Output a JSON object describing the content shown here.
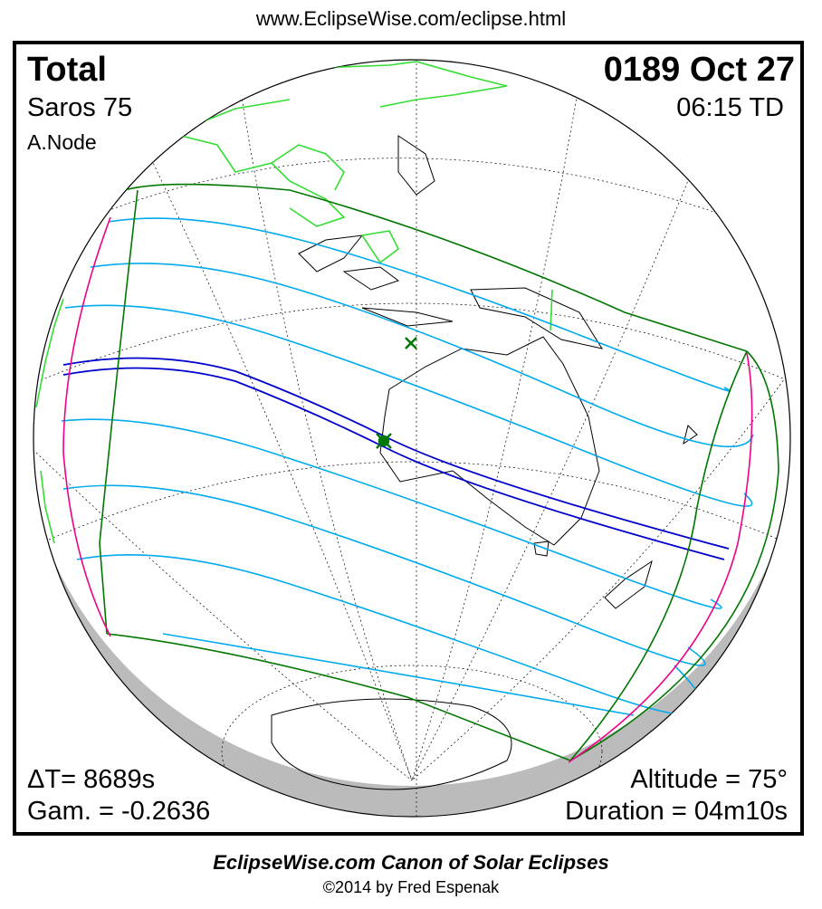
{
  "header": {
    "url": "www.EclipseWise.com/eclipse.html"
  },
  "eclipse": {
    "type": "Total",
    "date": "0189 Oct 27",
    "saros": "Saros  75",
    "time": "06:15 TD",
    "node": "A.Node",
    "delta_t": "ΔT=   8689s",
    "gamma": "Gam. = -0.2636",
    "altitude": "Altitude = 75°",
    "duration": "Duration = 04m10s"
  },
  "footer": {
    "title": "EclipseWise.com Canon of Solar Eclipses",
    "copyright": "©2014 by Fred Espenak"
  },
  "colors": {
    "central_path": "#0000cc",
    "penumbral_lines": "#00aaee",
    "penumbra_limits": "#007700",
    "rise_set_curves": "#ee0088",
    "land_daylight": "#33dd33",
    "night_shadow": "#bbbbbb",
    "greatest_eclipse_marker": "#007700"
  }
}
